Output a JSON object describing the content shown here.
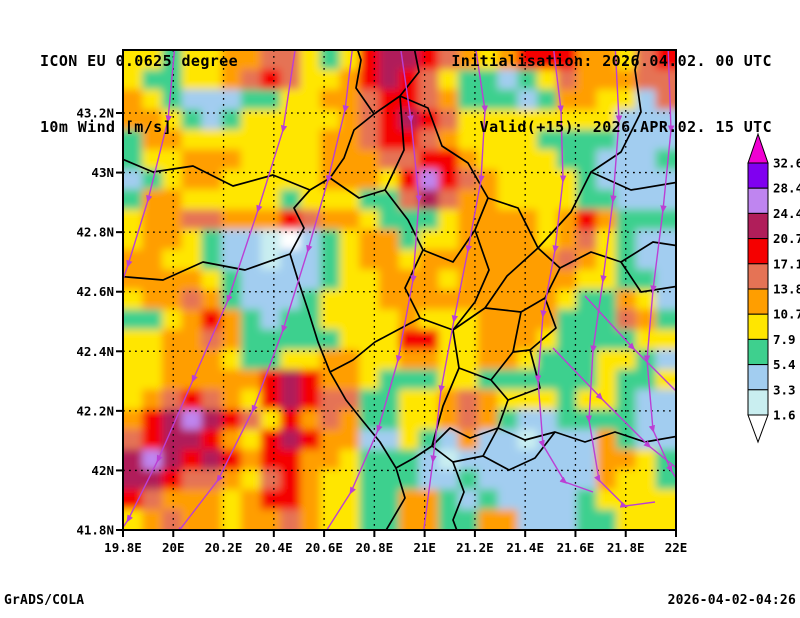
{
  "header": {
    "line1": "ICON EU 0.0625 degree",
    "line2": "10m Wind [m/s]",
    "init_line": "Initialisation: 2026.04.02. 00 UTC",
    "valid_line": "Valid(+15): 2026.APR.02. 15 UTC"
  },
  "footer": {
    "left": "GrADS/COLA",
    "right": "2026-04-02-04:26"
  },
  "chart_data": {
    "type": "heatmap",
    "title": "10m Wind [m/s]",
    "x_ticks": [
      "19.8E",
      "20E",
      "20.2E",
      "20.4E",
      "20.6E",
      "20.8E",
      "21E",
      "21.2E",
      "21.4E",
      "21.6E",
      "21.8E",
      "22E"
    ],
    "y_ticks": [
      "43.2N",
      "43N",
      "42.8N",
      "42.6N",
      "42.4N",
      "42.2N",
      "42N",
      "41.8N"
    ],
    "x_range_deg": [
      19.8,
      22.0
    ],
    "y_range_deg": [
      41.79,
      43.41
    ],
    "grid_on": true,
    "legend_position": "right",
    "legend_levels": [
      1.6,
      3.3,
      5.4,
      7.9,
      10.7,
      13.8,
      17.1,
      20.7,
      24.4,
      28.4,
      32.6
    ],
    "palette": [
      {
        "band": "0",
        "range": "< 1.6",
        "color": "#ffffff"
      },
      {
        "band": "1",
        "range": "1.6-3.3",
        "color": "#c9eef0"
      },
      {
        "band": "2",
        "range": "3.3-5.4",
        "color": "#a2cdf0"
      },
      {
        "band": "3",
        "range": "5.4-7.9",
        "color": "#3ed08e"
      },
      {
        "band": "4",
        "range": "7.9-10.7",
        "color": "#ffe600"
      },
      {
        "band": "5",
        "range": "10.7-13.8",
        "color": "#ff9e00"
      },
      {
        "band": "6",
        "range": "13.8-17.1",
        "color": "#e57355"
      },
      {
        "band": "7",
        "range": "17.1-20.7",
        "color": "#f50000"
      },
      {
        "band": "8",
        "range": "20.7-24.4",
        "color": "#b01e5a"
      },
      {
        "band": "9",
        "range": "24.4-28.4",
        "color": "#bf85f0"
      },
      {
        "band": "A",
        "range": "28.4-32.6",
        "color": "#8000f0"
      },
      {
        "band": "B",
        "range": "> 32.6",
        "color": "#f000d2"
      }
    ],
    "grid_cols": 28,
    "grid_rows": 24,
    "grid_bands": [
      "4434455664347887654577755467",
      "4334456764457876433234655566",
      "5432223344556776533323554426",
      "5543234444456787644444444222",
      "3554444444556776544443333222",
      "3445554444555667754444332223",
      "2345544444555479765444432222",
      "3554444434443368655444433222",
      "4556655576554333455554575333",
      "4554322102345534455554564322",
      "5544322122345545555555654322",
      "5555432222344555455555544332",
      "4556532223444555555555433542",
      "3345753233444454445555333653",
      "4455653333344477445554333344",
      "4455543344554455445543334432",
      "4455555787554333443333334334",
      "4567654787663344565444344322",
      "5789876475653344565322333322",
      "6788754787552243252212225322",
      "8987875775543332122222225543",
      "8876654675443332232222225443",
      "7655545775443355323222234444",
      "4565545565443355335522233444"
    ],
    "overlay_colors": {
      "streamlines": "#bb3fd4",
      "borders": "#000000",
      "gridlines": "#000000"
    }
  }
}
